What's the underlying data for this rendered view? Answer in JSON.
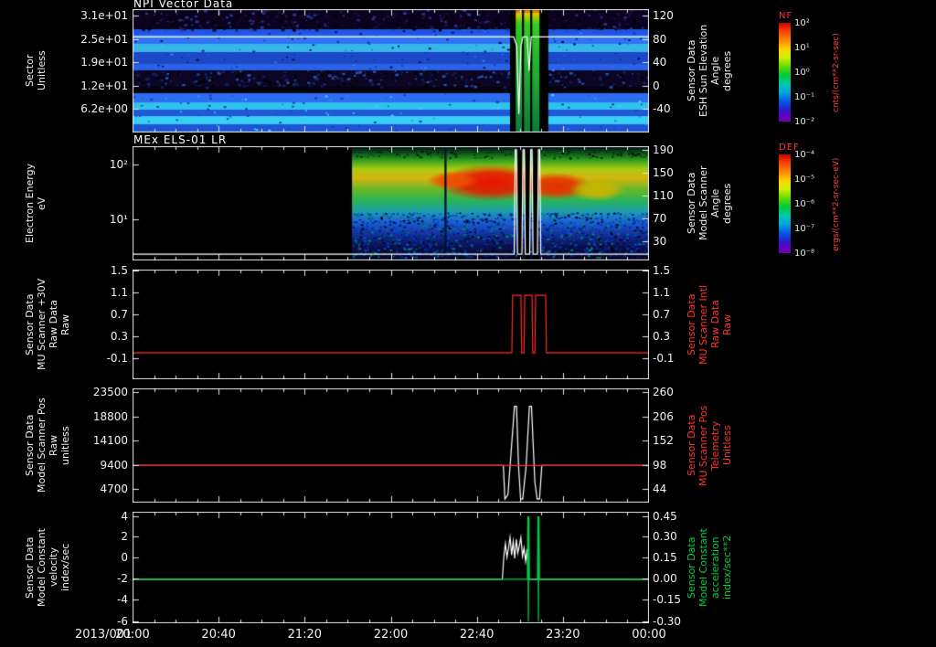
{
  "figure": {
    "date_label": "2013/001",
    "x_ticks": [
      "20:00",
      "20:40",
      "21:20",
      "22:00",
      "22:40",
      "23:20",
      "00:00"
    ],
    "colors": {
      "trace_red": "#ff2a2a",
      "trace_green": "#00cc44",
      "trace_white": "#ffffff",
      "axis": "#ffffff",
      "background": "#000000"
    }
  },
  "chart_data": [
    {
      "type": "heatmap",
      "title": "NPI Vector Data",
      "ylabel_lines": [
        "Sector",
        "Unitless"
      ],
      "ylabel_right_lines": [
        "Sensor Data",
        "ESH Sun Elevation",
        "Angle",
        "degrees"
      ],
      "ylabel_right_color": "#f0f0f0",
      "yticks_left": [
        "3.1e+01",
        "2.5e+01",
        "1.9e+01",
        "1.2e+01",
        "6.2e+00"
      ],
      "tick_fracs_left": [
        0.052,
        0.241,
        0.43,
        0.619,
        0.807
      ],
      "yticks_right": [
        "120",
        "80",
        "40",
        "0",
        "-40"
      ],
      "tick_fracs_right": [
        0.052,
        0.241,
        0.43,
        0.619,
        0.807
      ],
      "colorbar": {
        "label": "NF",
        "ticks": [
          "10²",
          "10¹",
          "10⁰",
          "10⁻¹",
          "10⁻²"
        ],
        "units": "cnts/(cm**2-sr-sec)"
      },
      "bands": [
        {
          "y0": 0.0,
          "y1": 0.163,
          "color": "#0d0120"
        },
        {
          "y0": 0.163,
          "y1": 0.207,
          "color": "#1f55e0"
        },
        {
          "y0": 0.207,
          "y1": 0.281,
          "color": "#2e72f5"
        },
        {
          "y0": 0.281,
          "y1": 0.348,
          "color": "#37b6e9"
        },
        {
          "y0": 0.348,
          "y1": 0.444,
          "color": "#1c48c8"
        },
        {
          "y0": 0.444,
          "y1": 0.496,
          "color": "#2a63e8"
        },
        {
          "y0": 0.496,
          "y1": 0.63,
          "color": "#0c0624"
        },
        {
          "y0": 0.63,
          "y1": 0.681,
          "color": "#04030e"
        },
        {
          "y0": 0.681,
          "y1": 0.756,
          "color": "#2d6df2"
        },
        {
          "y0": 0.756,
          "y1": 0.815,
          "color": "#2fc3ea"
        },
        {
          "y0": 0.815,
          "y1": 0.867,
          "color": "#2257d8"
        },
        {
          "y0": 0.867,
          "y1": 0.933,
          "color": "#38cdf2"
        },
        {
          "y0": 0.933,
          "y1": 1.0,
          "color": "#1e55d2"
        }
      ],
      "speckle": [
        {
          "x0": 0,
          "x1": 1,
          "y0": 0.0,
          "y1": 0.163,
          "count": 520,
          "colors": [
            "#000000",
            "#1a1040",
            "#2a3a9a",
            "#05051a"
          ],
          "size": 3
        },
        {
          "x0": 0,
          "x1": 1,
          "y0": 0.496,
          "y1": 0.63,
          "count": 360,
          "colors": [
            "#000000",
            "#14226a",
            "#2a50b0"
          ],
          "size": 3
        },
        {
          "x0": 0,
          "x1": 1,
          "y0": 0.163,
          "y1": 0.496,
          "count": 150,
          "colors": [
            "#10309a",
            "#3a80ff",
            "#071040"
          ],
          "size": 2
        },
        {
          "x0": 0,
          "x1": 1,
          "y0": 0.681,
          "y1": 1.0,
          "count": 130,
          "colors": [
            "#1a3fae",
            "#4ad2ff",
            "#123a9a"
          ],
          "size": 2
        }
      ],
      "stripes": [
        {
          "x0": 0.731,
          "x1": 0.805,
          "color": "#000000"
        },
        {
          "x0": 0.742,
          "x1": 0.754,
          "grad": [
            [
              0,
              "#cc3300"
            ],
            [
              0.04,
              "#ddcc00"
            ],
            [
              0.12,
              "#33cc22"
            ],
            [
              0.55,
              "#1faa33"
            ],
            [
              1,
              "#0f7a3a"
            ]
          ]
        },
        {
          "x0": 0.758,
          "x1": 0.77,
          "grad": [
            [
              0,
              "#cc3300"
            ],
            [
              0.04,
              "#ddcc00"
            ],
            [
              0.12,
              "#33cc22"
            ],
            [
              0.55,
              "#1faa33"
            ],
            [
              1,
              "#0f7a3a"
            ]
          ]
        },
        {
          "x0": 0.774,
          "x1": 0.788,
          "grad": [
            [
              0,
              "#cc3300"
            ],
            [
              0.04,
              "#ddcc00"
            ],
            [
              0.12,
              "#33cc22"
            ],
            [
              0.55,
              "#1faa33"
            ],
            [
              1,
              "#0f7a3a"
            ]
          ]
        }
      ],
      "overlay": {
        "color": "#ffffff",
        "points": [
          [
            0,
            0.225
          ],
          [
            0.738,
            0.225
          ],
          [
            0.744,
            0.3
          ],
          [
            0.748,
            0.85
          ],
          [
            0.752,
            0.3
          ],
          [
            0.756,
            0.225
          ],
          [
            0.764,
            0.225
          ],
          [
            0.768,
            0.5
          ],
          [
            0.772,
            0.225
          ],
          [
            1,
            0.225
          ]
        ]
      }
    },
    {
      "type": "heatmap",
      "title": "MEx ELS-01 LR",
      "ylabel_lines": [
        "Electron Energy",
        "eV"
      ],
      "ylabel_right_lines": [
        "Sensor Data",
        "Model Scanner",
        "Angle",
        "degrees"
      ],
      "ylabel_right_color": "#f0f0f0",
      "yticks_left": [
        "10²",
        "10¹"
      ],
      "tick_fracs_left": [
        0.16,
        0.64
      ],
      "yticks_right": [
        "190",
        "150",
        "110",
        "70",
        "30"
      ],
      "tick_fracs_right": [
        0.03,
        0.23,
        0.43,
        0.63,
        0.83
      ],
      "colorbar": {
        "label": "DEF",
        "ticks": [
          "10⁻⁴",
          "10⁻⁵",
          "10⁻⁶",
          "10⁻⁷",
          "10⁻⁸"
        ],
        "units": "ergs/(cm**2-sr-sec-eV)"
      },
      "region": {
        "x0": 0.425,
        "grad": [
          [
            0,
            "#000814"
          ],
          [
            0.05,
            "#0b4418"
          ],
          [
            0.12,
            "#2f9e1e"
          ],
          [
            0.2,
            "#a8cc12"
          ],
          [
            0.28,
            "#d8b40e"
          ],
          [
            0.38,
            "#66b828"
          ],
          [
            0.48,
            "#28b45a"
          ],
          [
            0.57,
            "#1f9fae"
          ],
          [
            0.66,
            "#1b62d6"
          ],
          [
            0.76,
            "#1535a0"
          ],
          [
            0.88,
            "#0b1050"
          ],
          [
            1,
            "#040820"
          ]
        ]
      },
      "blobs": [
        {
          "cx": 0.695,
          "cy": 0.32,
          "rx": 0.105,
          "ry": 0.16,
          "color": "#e61400"
        },
        {
          "cx": 0.62,
          "cy": 0.3,
          "rx": 0.05,
          "ry": 0.08,
          "color": "#f05000"
        },
        {
          "cx": 0.82,
          "cy": 0.35,
          "rx": 0.07,
          "ry": 0.12,
          "color": "#e63000"
        },
        {
          "cx": 0.9,
          "cy": 0.38,
          "rx": 0.055,
          "ry": 0.1,
          "color": "#c8b400"
        }
      ],
      "speckle": [
        {
          "x0": 0.425,
          "x1": 1,
          "y0": 0.58,
          "y1": 0.97,
          "count": 1400,
          "colors": [
            "#0030b0",
            "#001a70",
            "#0050e0",
            "#000314",
            "#008a64"
          ],
          "size": 2
        },
        {
          "x0": 0.425,
          "x1": 1,
          "y0": 0.04,
          "y1": 0.1,
          "count": 200,
          "colors": [
            "#063a10",
            "#0a6a1a",
            "#000808"
          ],
          "size": 2
        }
      ],
      "stripes": [
        {
          "x0": 0.604,
          "x1": 0.608,
          "color": "#041030"
        },
        {
          "x0": 0.7455,
          "x1": 0.7555,
          "color": "#000000"
        },
        {
          "x0": 0.7605,
          "x1": 0.7695,
          "color": "#000000"
        },
        {
          "x0": 0.7755,
          "x1": 0.7855,
          "color": "#000000"
        }
      ],
      "overlay": {
        "color": "#ffffff",
        "points": [
          [
            0,
            0.945
          ],
          [
            0.739,
            0.945
          ],
          [
            0.741,
            0.03
          ],
          [
            0.7435,
            0.03
          ],
          [
            0.7455,
            0.945
          ],
          [
            0.754,
            0.945
          ],
          [
            0.756,
            0.03
          ],
          [
            0.7585,
            0.03
          ],
          [
            0.7605,
            0.945
          ],
          [
            0.769,
            0.945
          ],
          [
            0.771,
            0.03
          ],
          [
            0.7735,
            0.03
          ],
          [
            0.7755,
            0.945
          ],
          [
            0.784,
            0.945
          ],
          [
            0.786,
            0.03
          ],
          [
            0.7885,
            0.03
          ],
          [
            0.7905,
            0.945
          ],
          [
            1,
            0.945
          ]
        ]
      }
    },
    {
      "type": "line",
      "title": "",
      "ylabel_lines": [
        "Sensor Data",
        "MU Scanner +30V",
        "Raw Data",
        "Raw"
      ],
      "ylabel_right_lines": [
        "Sensor Data",
        "MU Scanner Intl",
        "Raw Data",
        "Raw"
      ],
      "ylabel_right_color": "#ff3333",
      "yticks_left": [
        "1.5",
        "1.1",
        "0.7",
        "0.3",
        "-0.1"
      ],
      "tick_fracs_left": [
        0.01,
        0.21,
        0.41,
        0.61,
        0.81
      ],
      "yticks_right": [
        "1.5",
        "1.1",
        "0.7",
        "0.3",
        "-0.1"
      ],
      "tick_fracs_right": [
        0.01,
        0.21,
        0.41,
        0.61,
        0.81
      ],
      "ylim_left": [
        -0.48,
        1.52
      ],
      "ylim_right": [
        -0.48,
        1.52
      ],
      "series": [
        {
          "name": "MU Scanner +30V Raw Data",
          "axis": "left",
          "color": "#ff2a2a",
          "points": [
            [
              0,
              0.0
            ],
            [
              0.7345,
              0.0
            ],
            [
              0.736,
              1.05
            ],
            [
              0.752,
              1.05
            ],
            [
              0.7535,
              0.0
            ],
            [
              0.758,
              0.0
            ],
            [
              0.7595,
              1.05
            ],
            [
              0.7735,
              1.05
            ],
            [
              0.775,
              0.0
            ],
            [
              0.779,
              0.0
            ],
            [
              0.7805,
              1.05
            ],
            [
              0.8,
              1.05
            ],
            [
              0.8015,
              0.0
            ],
            [
              1,
              0.0
            ]
          ]
        }
      ]
    },
    {
      "type": "line",
      "title": "",
      "ylabel_lines": [
        "Sensor Data",
        "Model Scanner Pos",
        "Raw",
        "unitless"
      ],
      "ylabel_right_lines": [
        "Sensor Data",
        "MU Scanner Pos",
        "Telemetry",
        "Unitless"
      ],
      "ylabel_right_color": "#ff3333",
      "yticks_left": [
        "23500",
        "18800",
        "14100",
        "9400",
        "4700"
      ],
      "tick_fracs_left": [
        0.032,
        0.244,
        0.456,
        0.668,
        0.88
      ],
      "yticks_right": [
        "260",
        "206",
        "152",
        "98",
        "44"
      ],
      "tick_fracs_right": [
        0.032,
        0.244,
        0.456,
        0.668,
        0.88
      ],
      "ylim_left": [
        2000,
        24200
      ],
      "ylim_right": [
        13,
        268
      ],
      "series": [
        {
          "name": "Model Scanner Pos Raw",
          "axis": "left",
          "color": "#ffffff",
          "points": [
            [
              0,
              9200
            ],
            [
              0.718,
              9200
            ],
            [
              0.721,
              2700
            ],
            [
              0.727,
              3600
            ],
            [
              0.7395,
              20700
            ],
            [
              0.7435,
              20700
            ],
            [
              0.7475,
              9000
            ],
            [
              0.7515,
              2700
            ],
            [
              0.7555,
              2700
            ],
            [
              0.762,
              9000
            ],
            [
              0.7685,
              20700
            ],
            [
              0.7725,
              20700
            ],
            [
              0.779,
              6000
            ],
            [
              0.7835,
              2700
            ],
            [
              0.788,
              2700
            ],
            [
              0.7925,
              9200
            ],
            [
              1,
              9200
            ]
          ]
        },
        {
          "name": "MU Scanner Pos Telemetry",
          "axis": "left",
          "color": "#ff2a2a",
          "points": [
            [
              0,
              9200
            ],
            [
              1,
              9200
            ]
          ]
        }
      ]
    },
    {
      "type": "line",
      "title": "",
      "ylabel_lines": [
        "Sensor Data",
        "Model Constant",
        "velocity",
        "index/sec"
      ],
      "ylabel_right_lines": [
        "Sensor Data",
        "Model Constant",
        "acceleration",
        "index/sec**2"
      ],
      "ylabel_right_color": "#00cc44",
      "yticks_left": [
        "4",
        "2",
        "0",
        "-2",
        "-4",
        "-6"
      ],
      "tick_fracs_left": [
        0.041,
        0.221,
        0.41,
        0.598,
        0.787,
        0.984
      ],
      "yticks_right": [
        "0.45",
        "0.30",
        "0.15",
        "0.00",
        "-0.15",
        "-0.30"
      ],
      "tick_fracs_right": [
        0.041,
        0.221,
        0.41,
        0.598,
        0.787,
        0.984
      ],
      "ylim_left": [
        -6.17,
        4.43
      ],
      "ylim_right": [
        -0.313,
        0.482
      ],
      "series": [
        {
          "name": "Model Constant velocity",
          "axis": "left",
          "color": "#ffffff",
          "points": [
            [
              0,
              -2.0
            ],
            [
              0.716,
              -2.0
            ],
            [
              0.719,
              0.2
            ],
            [
              0.722,
              1.4
            ],
            [
              0.725,
              0.1
            ],
            [
              0.728,
              1.0
            ],
            [
              0.731,
              2.0
            ],
            [
              0.734,
              0.3
            ],
            [
              0.737,
              1.6
            ],
            [
              0.74,
              0.0
            ],
            [
              0.743,
              1.8
            ],
            [
              0.746,
              0.5
            ],
            [
              0.749,
              1.2
            ],
            [
              0.752,
              2.0
            ],
            [
              0.755,
              0.2
            ],
            [
              0.758,
              1.0
            ],
            [
              0.761,
              -0.3
            ],
            [
              0.764,
              0.9
            ],
            [
              0.767,
              -2.0
            ],
            [
              1,
              -2.0
            ]
          ]
        },
        {
          "name": "Model Constant acceleration",
          "axis": "right",
          "color": "#00cc44",
          "points": [
            [
              0,
              0.0
            ],
            [
              0.7645,
              0.0
            ],
            [
              0.7655,
              0.45
            ],
            [
              0.7665,
              -0.3
            ],
            [
              0.7675,
              0.45
            ],
            [
              0.7685,
              0.0
            ],
            [
              0.784,
              0.0
            ],
            [
              0.785,
              0.45
            ],
            [
              0.786,
              -0.3
            ],
            [
              0.787,
              0.45
            ],
            [
              0.788,
              0.0
            ],
            [
              1,
              0.0
            ]
          ]
        }
      ]
    }
  ]
}
